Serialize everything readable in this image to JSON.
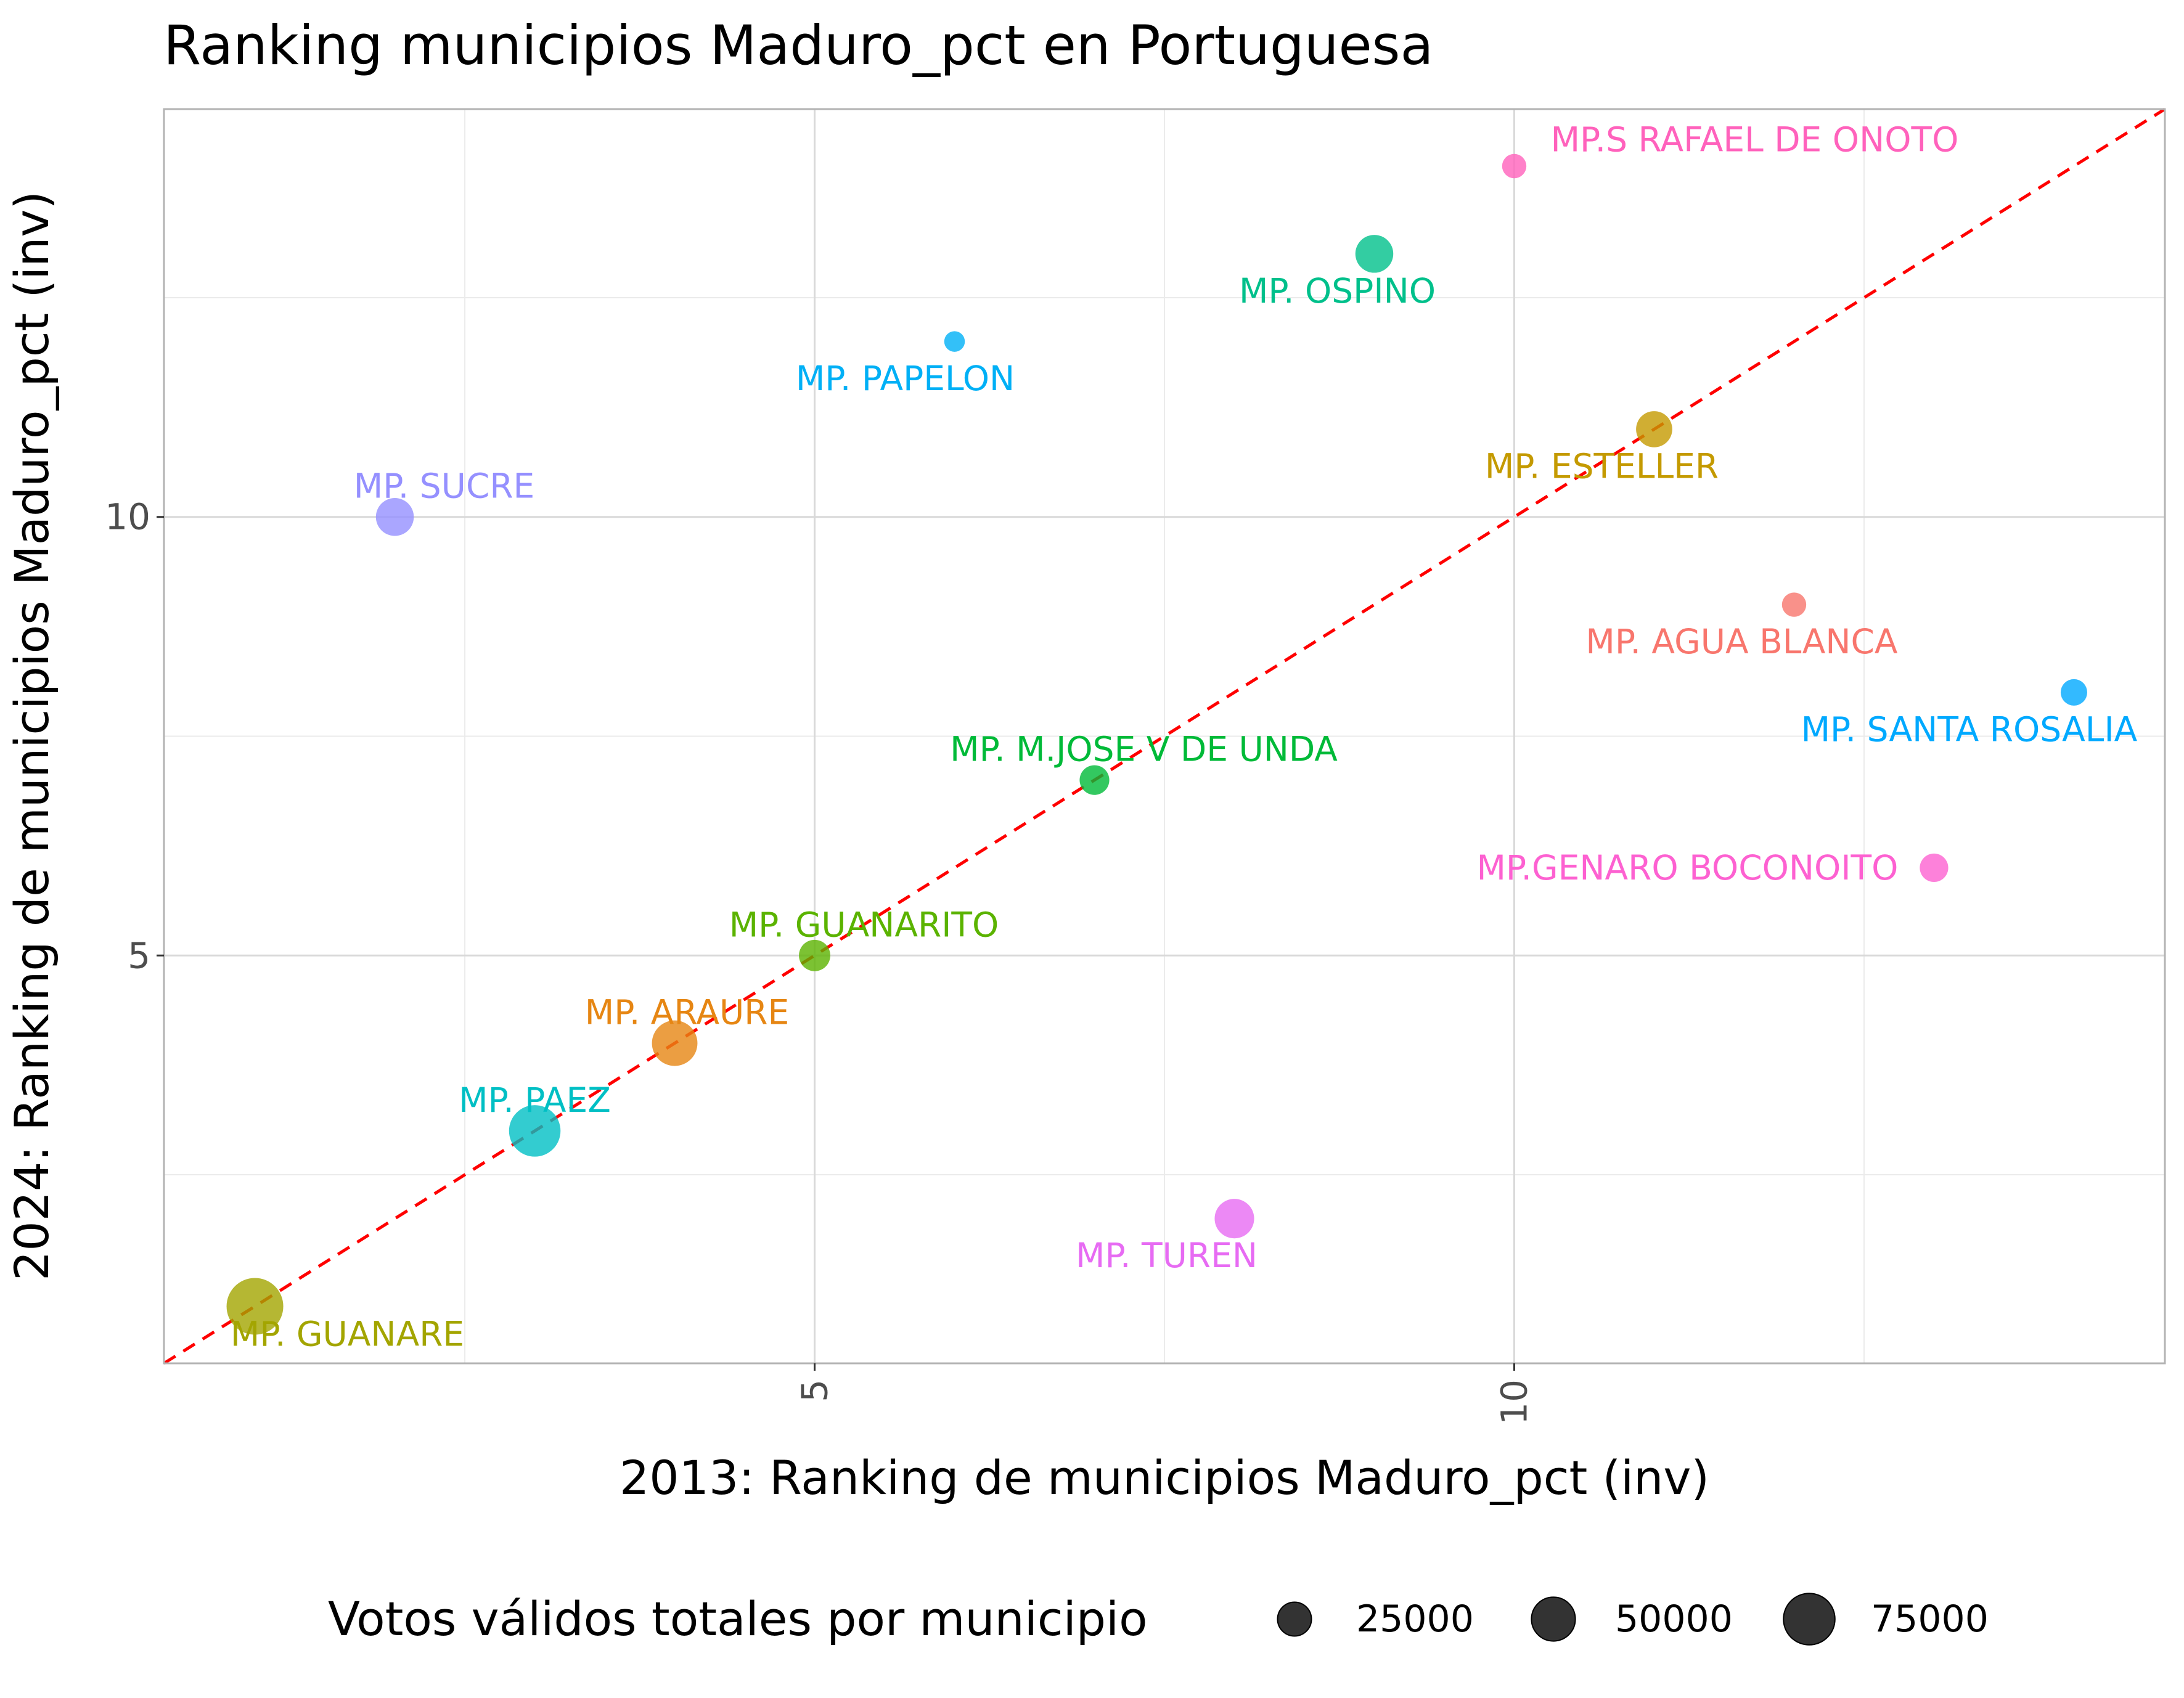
{
  "chart_data": {
    "type": "scatter",
    "title": "Ranking municipios Maduro_pct en Portuguesa",
    "xlabel": "2013: Ranking de municipios Maduro_pct (inv)",
    "ylabel": "2024: Ranking de municipios Maduro_pct (inv)",
    "xlim": [
      0.35,
      14.65
    ],
    "ylim": [
      0.35,
      14.65
    ],
    "x_ticks": [
      5,
      10
    ],
    "y_ticks": [
      5,
      10
    ],
    "grid": true,
    "reference_line": {
      "slope": 1,
      "intercept": 0,
      "color": "#ff0000",
      "style": "dashed"
    },
    "size_legend": {
      "title": "Votos válidos totales por municipio",
      "position": "bottom",
      "entries": [
        {
          "label": "25000",
          "value": 25000
        },
        {
          "label": "50000",
          "value": 50000
        },
        {
          "label": "75000",
          "value": 75000
        }
      ]
    },
    "points": [
      {
        "name": "MP. GUANARE",
        "x": 1,
        "y": 1,
        "votes": 95000,
        "color": "#a3a500"
      },
      {
        "name": "MP. PAEZ",
        "x": 3,
        "y": 3,
        "votes": 75000,
        "color": "#00bfc4"
      },
      {
        "name": "MP. ARAURE",
        "x": 4,
        "y": 4,
        "votes": 55000,
        "color": "#e68613"
      },
      {
        "name": "MP. GUANARITO",
        "x": 5,
        "y": 5,
        "votes": 20000,
        "color": "#5bb300"
      },
      {
        "name": "MP. M.JOSE V DE UNDA",
        "x": 7,
        "y": 7,
        "votes": 17000,
        "color": "#00ba38"
      },
      {
        "name": "MP. TUREN",
        "x": 8,
        "y": 2,
        "votes": 38000,
        "color": "#e76bf3"
      },
      {
        "name": "MP. SUCRE",
        "x": 2,
        "y": 10,
        "votes": 34000,
        "color": "#9590ff"
      },
      {
        "name": "MP. PAPELON",
        "x": 6,
        "y": 12,
        "votes": 5000,
        "color": "#00b0f6"
      },
      {
        "name": "MP. OSPINO",
        "x": 9,
        "y": 13,
        "votes": 34000,
        "color": "#00c08b"
      },
      {
        "name": "MP.S RAFAEL DE ONOTO",
        "x": 10,
        "y": 14,
        "votes": 9000,
        "color": "#ff62bc"
      },
      {
        "name": "MP. ESTELLER",
        "x": 11,
        "y": 11,
        "votes": 30000,
        "color": "#c49a00"
      },
      {
        "name": "MP. AGUA BLANCA",
        "x": 12,
        "y": 9,
        "votes": 9000,
        "color": "#f8766d"
      },
      {
        "name": "MP.GENARO BOCONOITO",
        "x": 13,
        "y": 6,
        "votes": 15000,
        "color": "#fd61d1"
      },
      {
        "name": "MP. SANTA ROSALIA",
        "x": 14,
        "y": 8,
        "votes": 12000,
        "color": "#00a9ff"
      }
    ]
  }
}
